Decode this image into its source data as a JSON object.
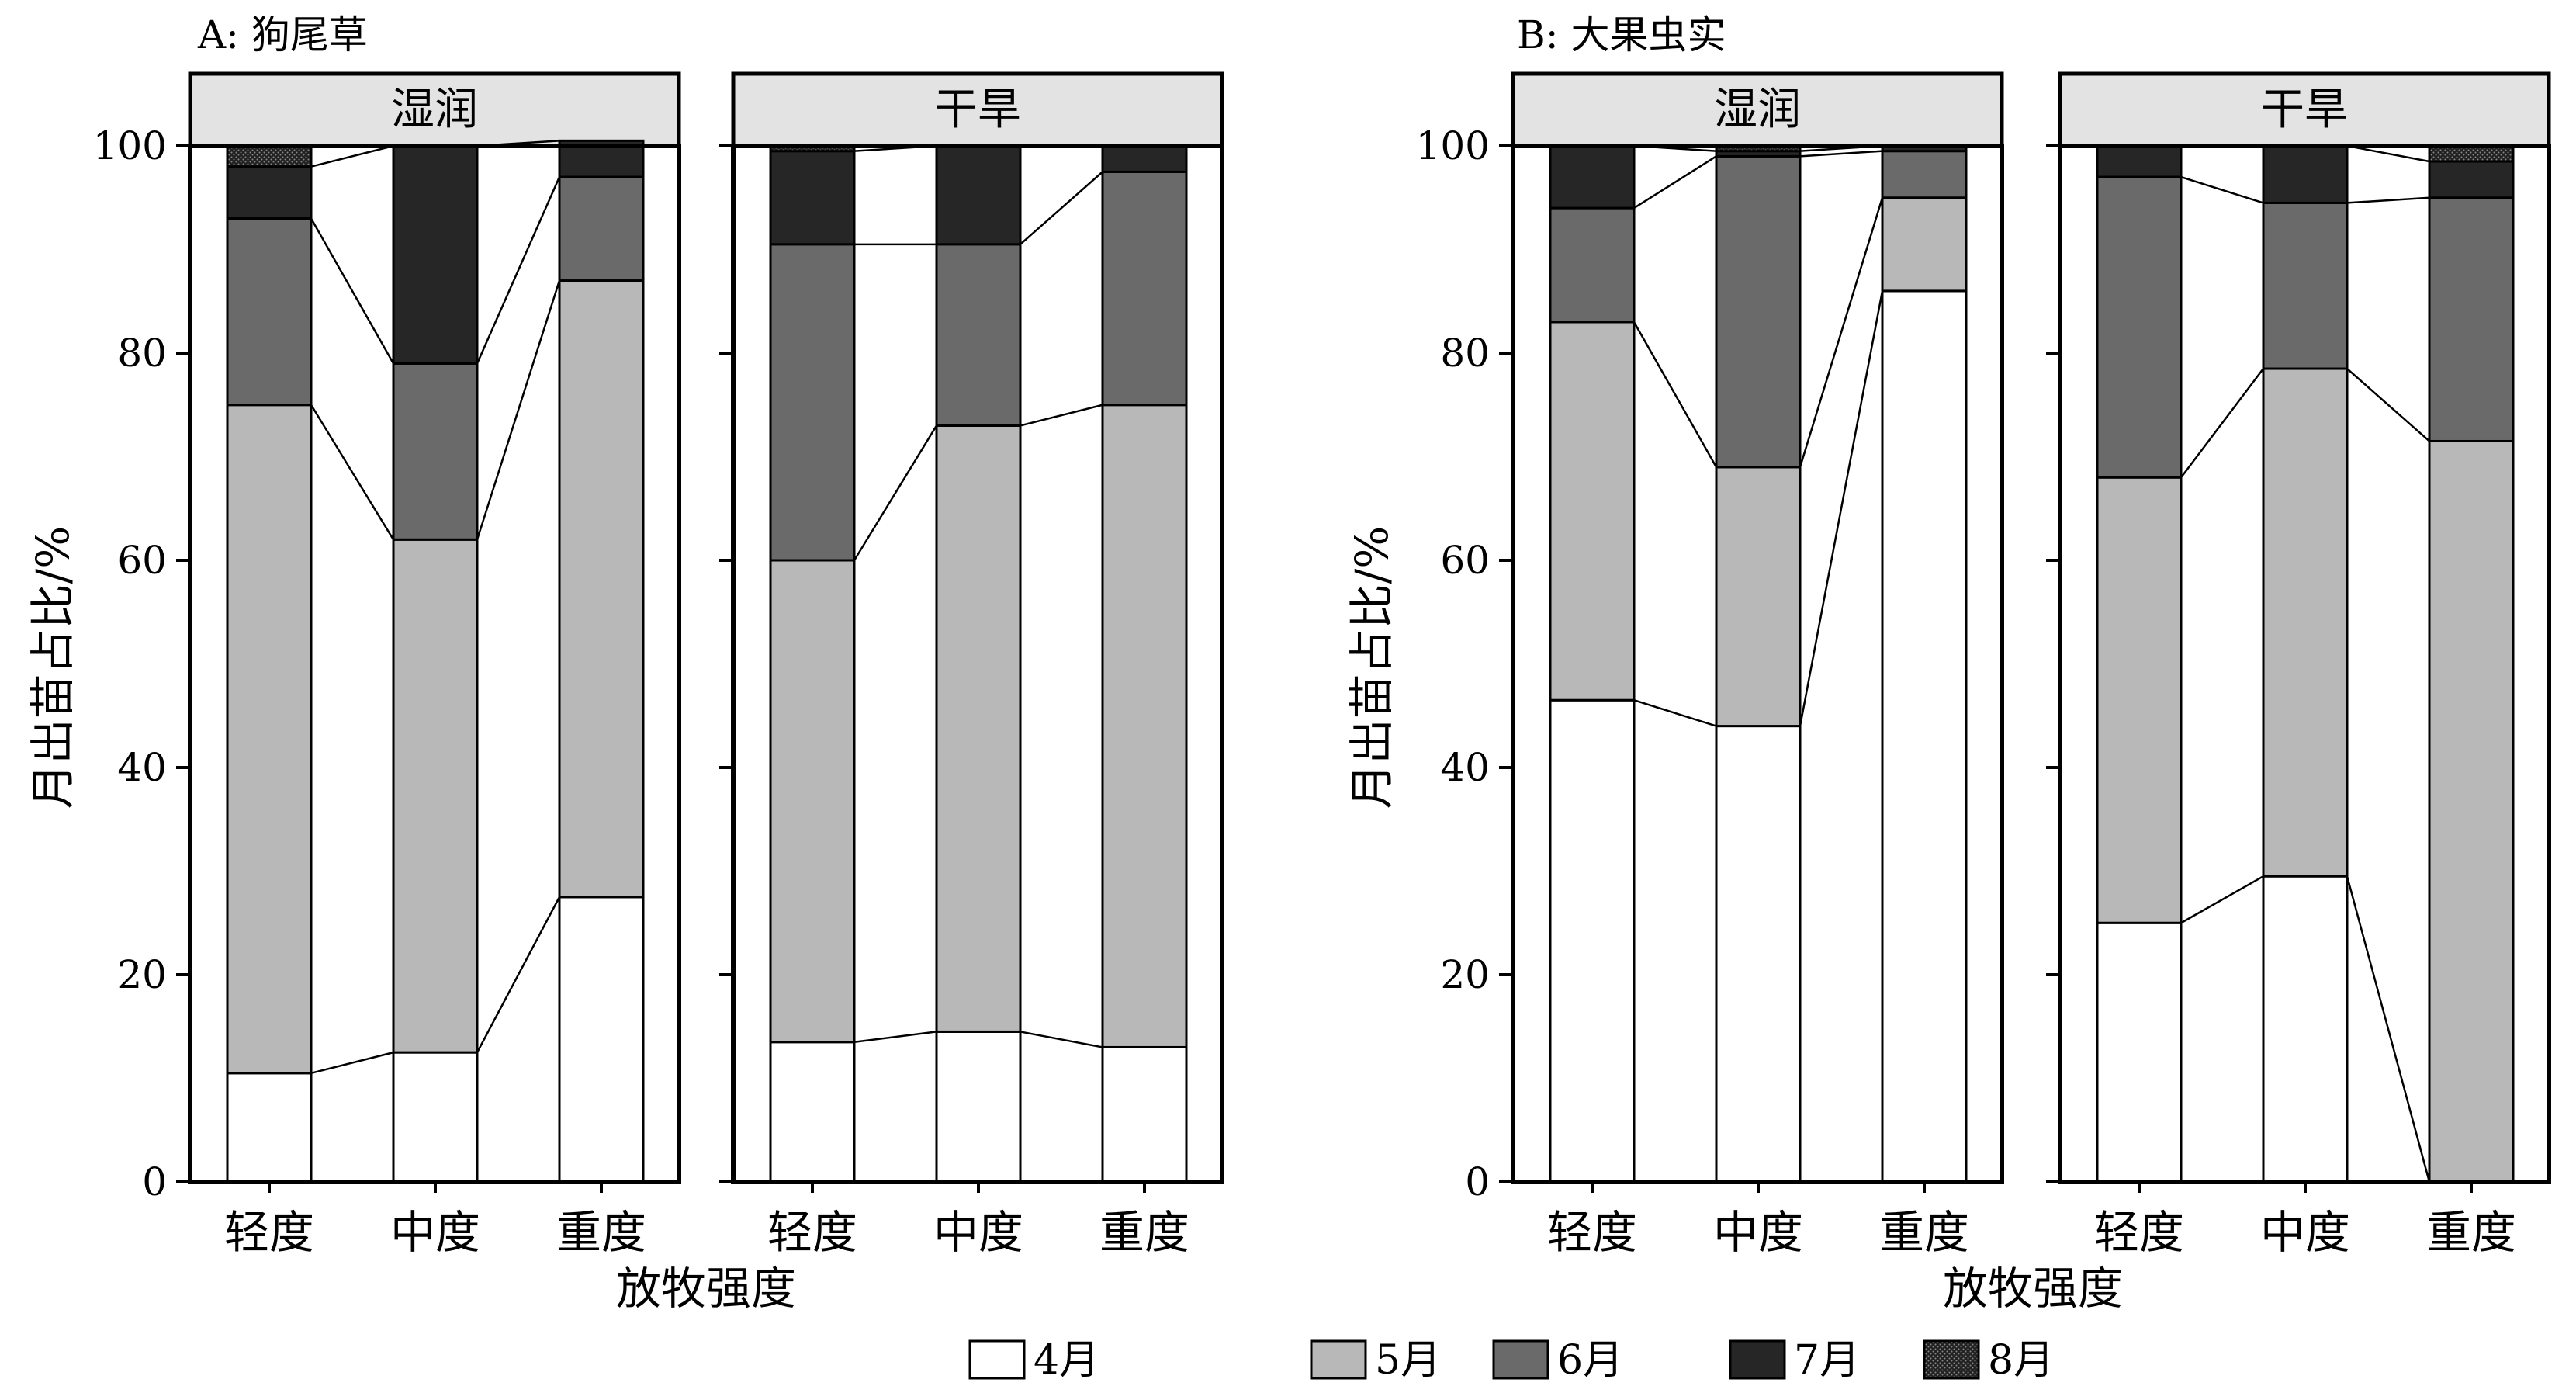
{
  "figure": {
    "xlabel": "放牧强度",
    "ylabel": "月出苗占比/%",
    "yticks": [
      "0",
      "20",
      "40",
      "60",
      "80",
      "100"
    ],
    "ylim": [
      0,
      100
    ]
  },
  "legend": [
    {
      "label": "4月",
      "color": "#ffffff",
      "pattern": false
    },
    {
      "label": "5月",
      "color": "#b8b8b8",
      "pattern": false
    },
    {
      "label": "6月",
      "color": "#6a6a6a",
      "pattern": false
    },
    {
      "label": "7月",
      "color": "#262626",
      "pattern": false
    },
    {
      "label": "8月",
      "color": "#111111",
      "pattern": true
    }
  ],
  "chart_data": [
    {
      "type": "bar",
      "stacked": true,
      "title": "A: 狗尾草",
      "categories": [
        "轻度",
        "中度",
        "重度"
      ],
      "facets": [
        {
          "label": "湿润",
          "series": [
            {
              "name": "4月",
              "values": [
                10.5,
                12.5,
                27.5
              ]
            },
            {
              "name": "5月",
              "values": [
                64.5,
                49.5,
                59.5
              ]
            },
            {
              "name": "6月",
              "values": [
                18,
                17,
                10
              ]
            },
            {
              "name": "7月",
              "values": [
                5,
                21,
                3.5
              ]
            },
            {
              "name": "8月",
              "values": [
                2,
                0,
                0
              ]
            }
          ]
        },
        {
          "label": "干旱",
          "series": [
            {
              "name": "4月",
              "values": [
                13.5,
                14.5,
                13
              ]
            },
            {
              "name": "5月",
              "values": [
                46.5,
                58.5,
                62
              ]
            },
            {
              "name": "6月",
              "values": [
                30.5,
                17.5,
                22.5
              ]
            },
            {
              "name": "7月",
              "values": [
                9,
                9.5,
                2.5
              ]
            },
            {
              "name": "8月",
              "values": [
                0.5,
                0,
                0
              ]
            }
          ]
        }
      ]
    },
    {
      "type": "bar",
      "stacked": true,
      "title": "B: 大果虫实",
      "categories": [
        "轻度",
        "中度",
        "重度"
      ],
      "facets": [
        {
          "label": "湿润",
          "series": [
            {
              "name": "4月",
              "values": [
                46.5,
                44,
                86
              ]
            },
            {
              "name": "5月",
              "values": [
                36.5,
                25,
                9
              ]
            },
            {
              "name": "6月",
              "values": [
                11,
                30,
                4.5
              ]
            },
            {
              "name": "7月",
              "values": [
                6,
                0.5,
                0.5
              ]
            },
            {
              "name": "8月",
              "values": [
                0,
                0.5,
                0
              ]
            }
          ]
        },
        {
          "label": "干旱",
          "series": [
            {
              "name": "4月",
              "values": [
                25,
                29.5,
                0
              ]
            },
            {
              "name": "5月",
              "values": [
                43,
                49,
                71.5
              ]
            },
            {
              "name": "6月",
              "values": [
                29,
                16,
                23.5
              ]
            },
            {
              "name": "7月",
              "values": [
                3,
                5.5,
                3.5
              ]
            },
            {
              "name": "8月",
              "values": [
                0,
                0,
                1.5
              ]
            }
          ]
        }
      ]
    }
  ]
}
